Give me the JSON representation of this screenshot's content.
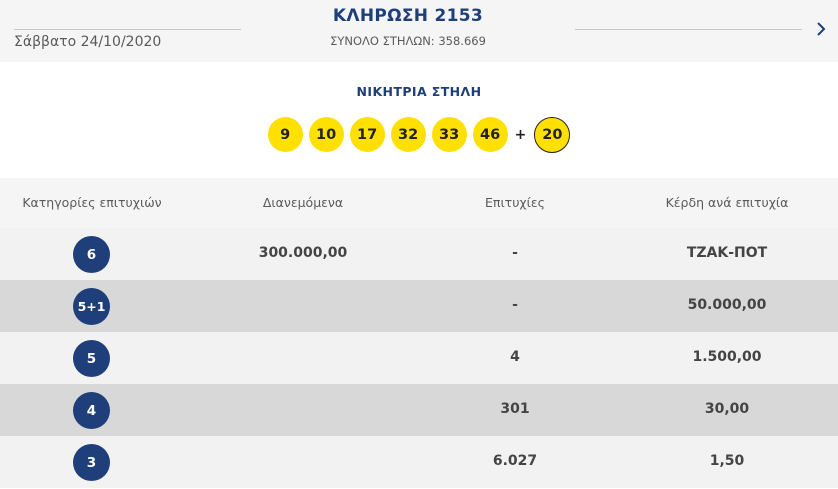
{
  "header": {
    "date": "Σάββατο 24/10/2020",
    "title": "ΚΛΗΡΩΣΗ 2153",
    "subtitle": "ΣΥΝΟΛΟ ΣΤΗΛΩΝ: 358.669",
    "next_icon": "chevron-right-icon"
  },
  "winning": {
    "label": "ΝΙΚΗΤΡΙΑ ΣΤΗΛΗ",
    "numbers": [
      "9",
      "10",
      "17",
      "32",
      "33",
      "46"
    ],
    "plus": "+",
    "joker": "20",
    "ball_color": "#ffe000"
  },
  "table": {
    "headers": {
      "category": "Κατηγορίες επιτυχιών",
      "distributed": "Διανεμόμενα",
      "winners": "Επιτυχίες",
      "prize": "Κέρδη ανά επιτυχία"
    },
    "rows": [
      {
        "category": "6",
        "distributed": "300.000,00",
        "winners": "-",
        "prize": "ΤΖΑΚ-ΠΟΤ"
      },
      {
        "category": "5+1",
        "distributed": "",
        "winners": "-",
        "prize": "50.000,00"
      },
      {
        "category": "5",
        "distributed": "",
        "winners": "4",
        "prize": "1.500,00"
      },
      {
        "category": "4",
        "distributed": "",
        "winners": "301",
        "prize": "30,00"
      },
      {
        "category": "3",
        "distributed": "",
        "winners": "6.027",
        "prize": "1,50"
      }
    ],
    "accent_color": "#1e3f79"
  }
}
